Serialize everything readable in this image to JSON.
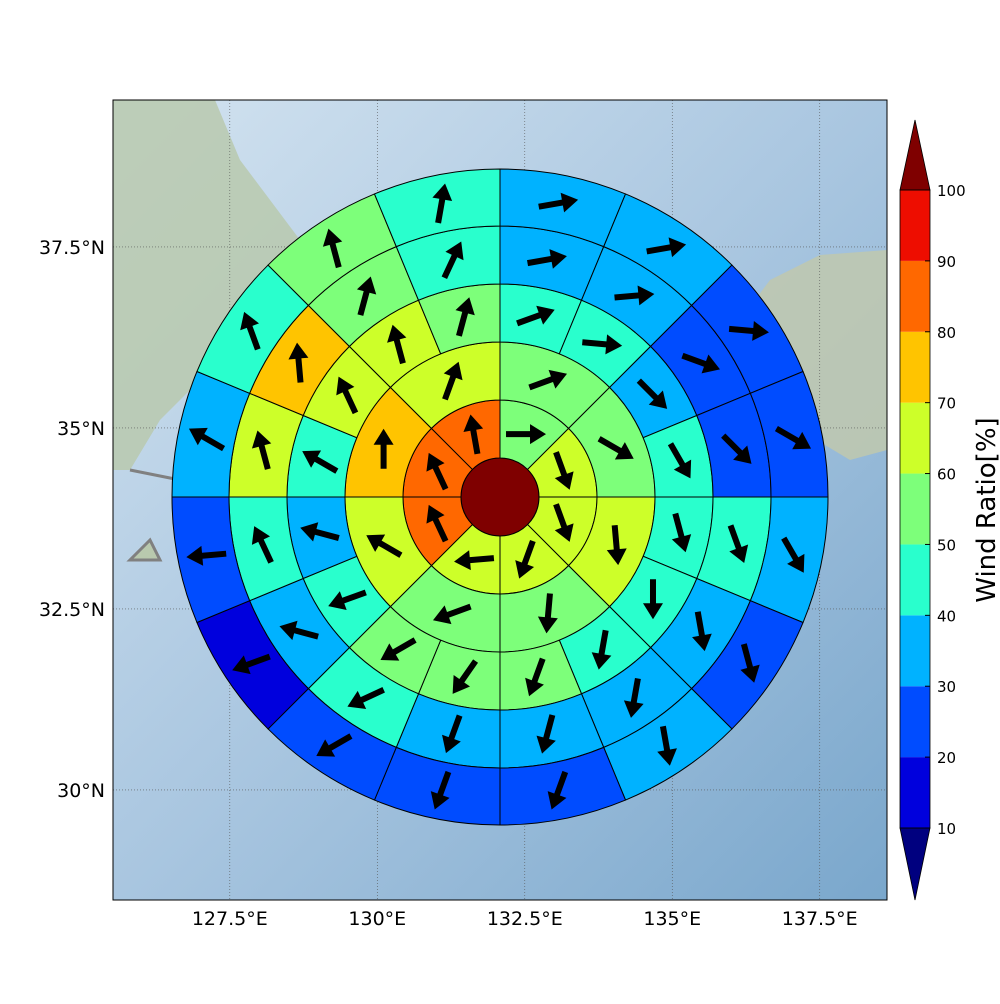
{
  "chart_data": {
    "type": "polar_wind_map",
    "xlim": [
      125.52,
      138.64
    ],
    "ylim": [
      28.48,
      39.53
    ],
    "xticks": [
      {
        "value": 127.5,
        "label": "127.5°E"
      },
      {
        "value": 130,
        "label": "130°E"
      },
      {
        "value": 132.5,
        "label": "132.5°E"
      },
      {
        "value": 135,
        "label": "135°E"
      },
      {
        "value": 137.5,
        "label": "137.5°E"
      }
    ],
    "yticks": [
      {
        "value": 30,
        "label": "30°N"
      },
      {
        "value": 32.5,
        "label": "32.5°N"
      },
      {
        "value": 35,
        "label": "35°N"
      },
      {
        "value": 37.5,
        "label": "37.5°N"
      }
    ],
    "grid": true,
    "colorbar": {
      "label": "Wind Ratio[%]",
      "ticks": [
        10,
        20,
        30,
        40,
        50,
        60,
        70,
        80,
        90,
        100
      ],
      "colors": [
        "#00007f",
        "#0000dd",
        "#004cff",
        "#00b2ff",
        "#29ffcd",
        "#7dff7a",
        "#cdff29",
        "#ffc400",
        "#ff6800",
        "#ee0d00",
        "#7f0000"
      ]
    },
    "center": {
      "value": 105
    },
    "rings": [
      {
        "values": [
          55,
          65,
          65,
          65,
          65,
          85,
          85,
          85
        ],
        "directions": [
          90,
          160,
          160,
          200,
          265,
          335,
          335,
          350
        ]
      },
      {
        "values": [
          55,
          55,
          65,
          55,
          55,
          65,
          75,
          65
        ],
        "directions": [
          70,
          120,
          175,
          185,
          250,
          300,
          0,
          20
        ]
      },
      {
        "values": [
          45,
          40,
          35,
          40,
          45,
          45,
          40,
          50,
          55,
          55,
          45,
          35,
          45,
          60,
          65,
          55
        ],
        "directions": [
          70,
          95,
          135,
          150,
          165,
          180,
          190,
          200,
          215,
          240,
          250,
          285,
          300,
          335,
          345,
          15
        ]
      },
      {
        "values": [
          35,
          35,
          25,
          25,
          45,
          35,
          35,
          35,
          35,
          45,
          35,
          45,
          65,
          75,
          55,
          45
        ],
        "directions": [
          80,
          85,
          110,
          135,
          160,
          170,
          190,
          195,
          200,
          245,
          285,
          335,
          345,
          355,
          15,
          25
        ]
      },
      {
        "values": [
          35,
          35,
          25,
          25,
          35,
          25,
          35,
          25,
          25,
          25,
          15,
          25,
          35,
          45,
          55,
          45
        ],
        "directions": [
          80,
          80,
          95,
          120,
          150,
          165,
          170,
          200,
          200,
          240,
          250,
          265,
          300,
          340,
          345,
          10
        ]
      }
    ]
  }
}
